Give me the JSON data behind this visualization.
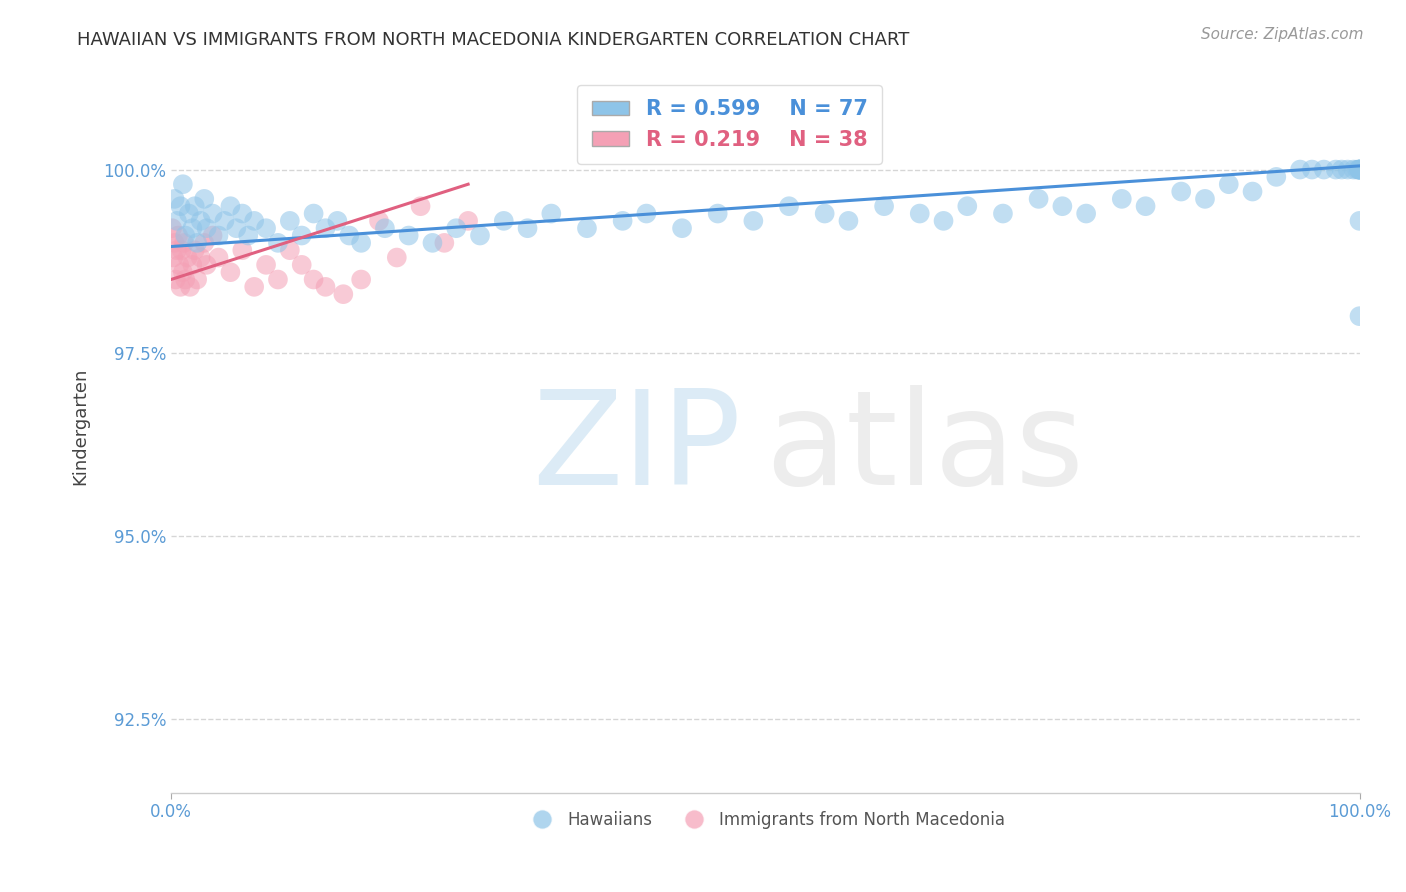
{
  "title": "HAWAIIAN VS IMMIGRANTS FROM NORTH MACEDONIA KINDERGARTEN CORRELATION CHART",
  "source": "Source: ZipAtlas.com",
  "ylabel": "Kindergarten",
  "xlim": [
    0.0,
    100.0
  ],
  "ylim": [
    91.5,
    101.5
  ],
  "yticks": [
    92.5,
    95.0,
    97.5,
    100.0
  ],
  "ytick_labels": [
    "92.5%",
    "95.0%",
    "97.5%",
    "100.0%"
  ],
  "xtick_labels": [
    "0.0%",
    "100.0%"
  ],
  "blue_R": 0.599,
  "blue_N": 77,
  "pink_R": 0.219,
  "pink_N": 38,
  "blue_color": "#8ec4e8",
  "pink_color": "#f4a0b5",
  "blue_line_color": "#4a90d9",
  "pink_line_color": "#e06080",
  "watermark_zip": "ZIP",
  "watermark_atlas": "atlas",
  "background_color": "#ffffff",
  "legend_label_blue": "Hawaiians",
  "legend_label_pink": "Immigrants from North Macedonia",
  "tick_color": "#5b9bd5",
  "blue_x": [
    0.3,
    0.5,
    0.8,
    1.0,
    1.2,
    1.5,
    1.8,
    2.0,
    2.2,
    2.5,
    2.8,
    3.0,
    3.5,
    4.0,
    4.5,
    5.0,
    5.5,
    6.0,
    6.5,
    7.0,
    8.0,
    9.0,
    10.0,
    11.0,
    12.0,
    13.0,
    14.0,
    15.0,
    16.0,
    18.0,
    20.0,
    22.0,
    24.0,
    26.0,
    28.0,
    30.0,
    32.0,
    35.0,
    38.0,
    40.0,
    43.0,
    46.0,
    49.0,
    52.0,
    55.0,
    57.0,
    60.0,
    63.0,
    65.0,
    67.0,
    70.0,
    73.0,
    75.0,
    77.0,
    80.0,
    82.0,
    85.0,
    87.0,
    89.0,
    91.0,
    93.0,
    95.0,
    96.0,
    97.0,
    98.0,
    98.5,
    99.0,
    99.5,
    99.8,
    100.0,
    100.0,
    100.0,
    100.0,
    100.0,
    100.0,
    100.0,
    100.0
  ],
  "blue_y": [
    99.6,
    99.3,
    99.5,
    99.8,
    99.1,
    99.4,
    99.2,
    99.5,
    99.0,
    99.3,
    99.6,
    99.2,
    99.4,
    99.1,
    99.3,
    99.5,
    99.2,
    99.4,
    99.1,
    99.3,
    99.2,
    99.0,
    99.3,
    99.1,
    99.4,
    99.2,
    99.3,
    99.1,
    99.0,
    99.2,
    99.1,
    99.0,
    99.2,
    99.1,
    99.3,
    99.2,
    99.4,
    99.2,
    99.3,
    99.4,
    99.2,
    99.4,
    99.3,
    99.5,
    99.4,
    99.3,
    99.5,
    99.4,
    99.3,
    99.5,
    99.4,
    99.6,
    99.5,
    99.4,
    99.6,
    99.5,
    99.7,
    99.6,
    99.8,
    99.7,
    99.9,
    100.0,
    100.0,
    100.0,
    100.0,
    100.0,
    100.0,
    100.0,
    100.0,
    100.0,
    100.0,
    100.0,
    100.0,
    100.0,
    100.0,
    98.0,
    99.3
  ],
  "pink_x": [
    0.1,
    0.2,
    0.3,
    0.4,
    0.5,
    0.6,
    0.7,
    0.8,
    0.9,
    1.0,
    1.1,
    1.2,
    1.4,
    1.6,
    1.8,
    2.0,
    2.2,
    2.5,
    2.8,
    3.0,
    3.5,
    4.0,
    5.0,
    6.0,
    7.0,
    8.0,
    9.0,
    10.0,
    11.0,
    12.0,
    13.0,
    14.5,
    16.0,
    17.5,
    19.0,
    21.0,
    23.0,
    25.0
  ],
  "pink_y": [
    99.2,
    98.8,
    99.0,
    98.5,
    98.9,
    99.1,
    98.7,
    98.4,
    98.9,
    98.6,
    99.0,
    98.5,
    98.8,
    98.4,
    98.7,
    98.9,
    98.5,
    98.8,
    99.0,
    98.7,
    99.1,
    98.8,
    98.6,
    98.9,
    98.4,
    98.7,
    98.5,
    98.9,
    98.7,
    98.5,
    98.4,
    98.3,
    98.5,
    99.3,
    98.8,
    99.5,
    99.0,
    99.3
  ],
  "blue_trend_x": [
    0,
    100
  ],
  "blue_trend_y": [
    98.95,
    100.05
  ],
  "pink_trend_x": [
    0,
    25
  ],
  "pink_trend_y": [
    98.5,
    99.8
  ]
}
